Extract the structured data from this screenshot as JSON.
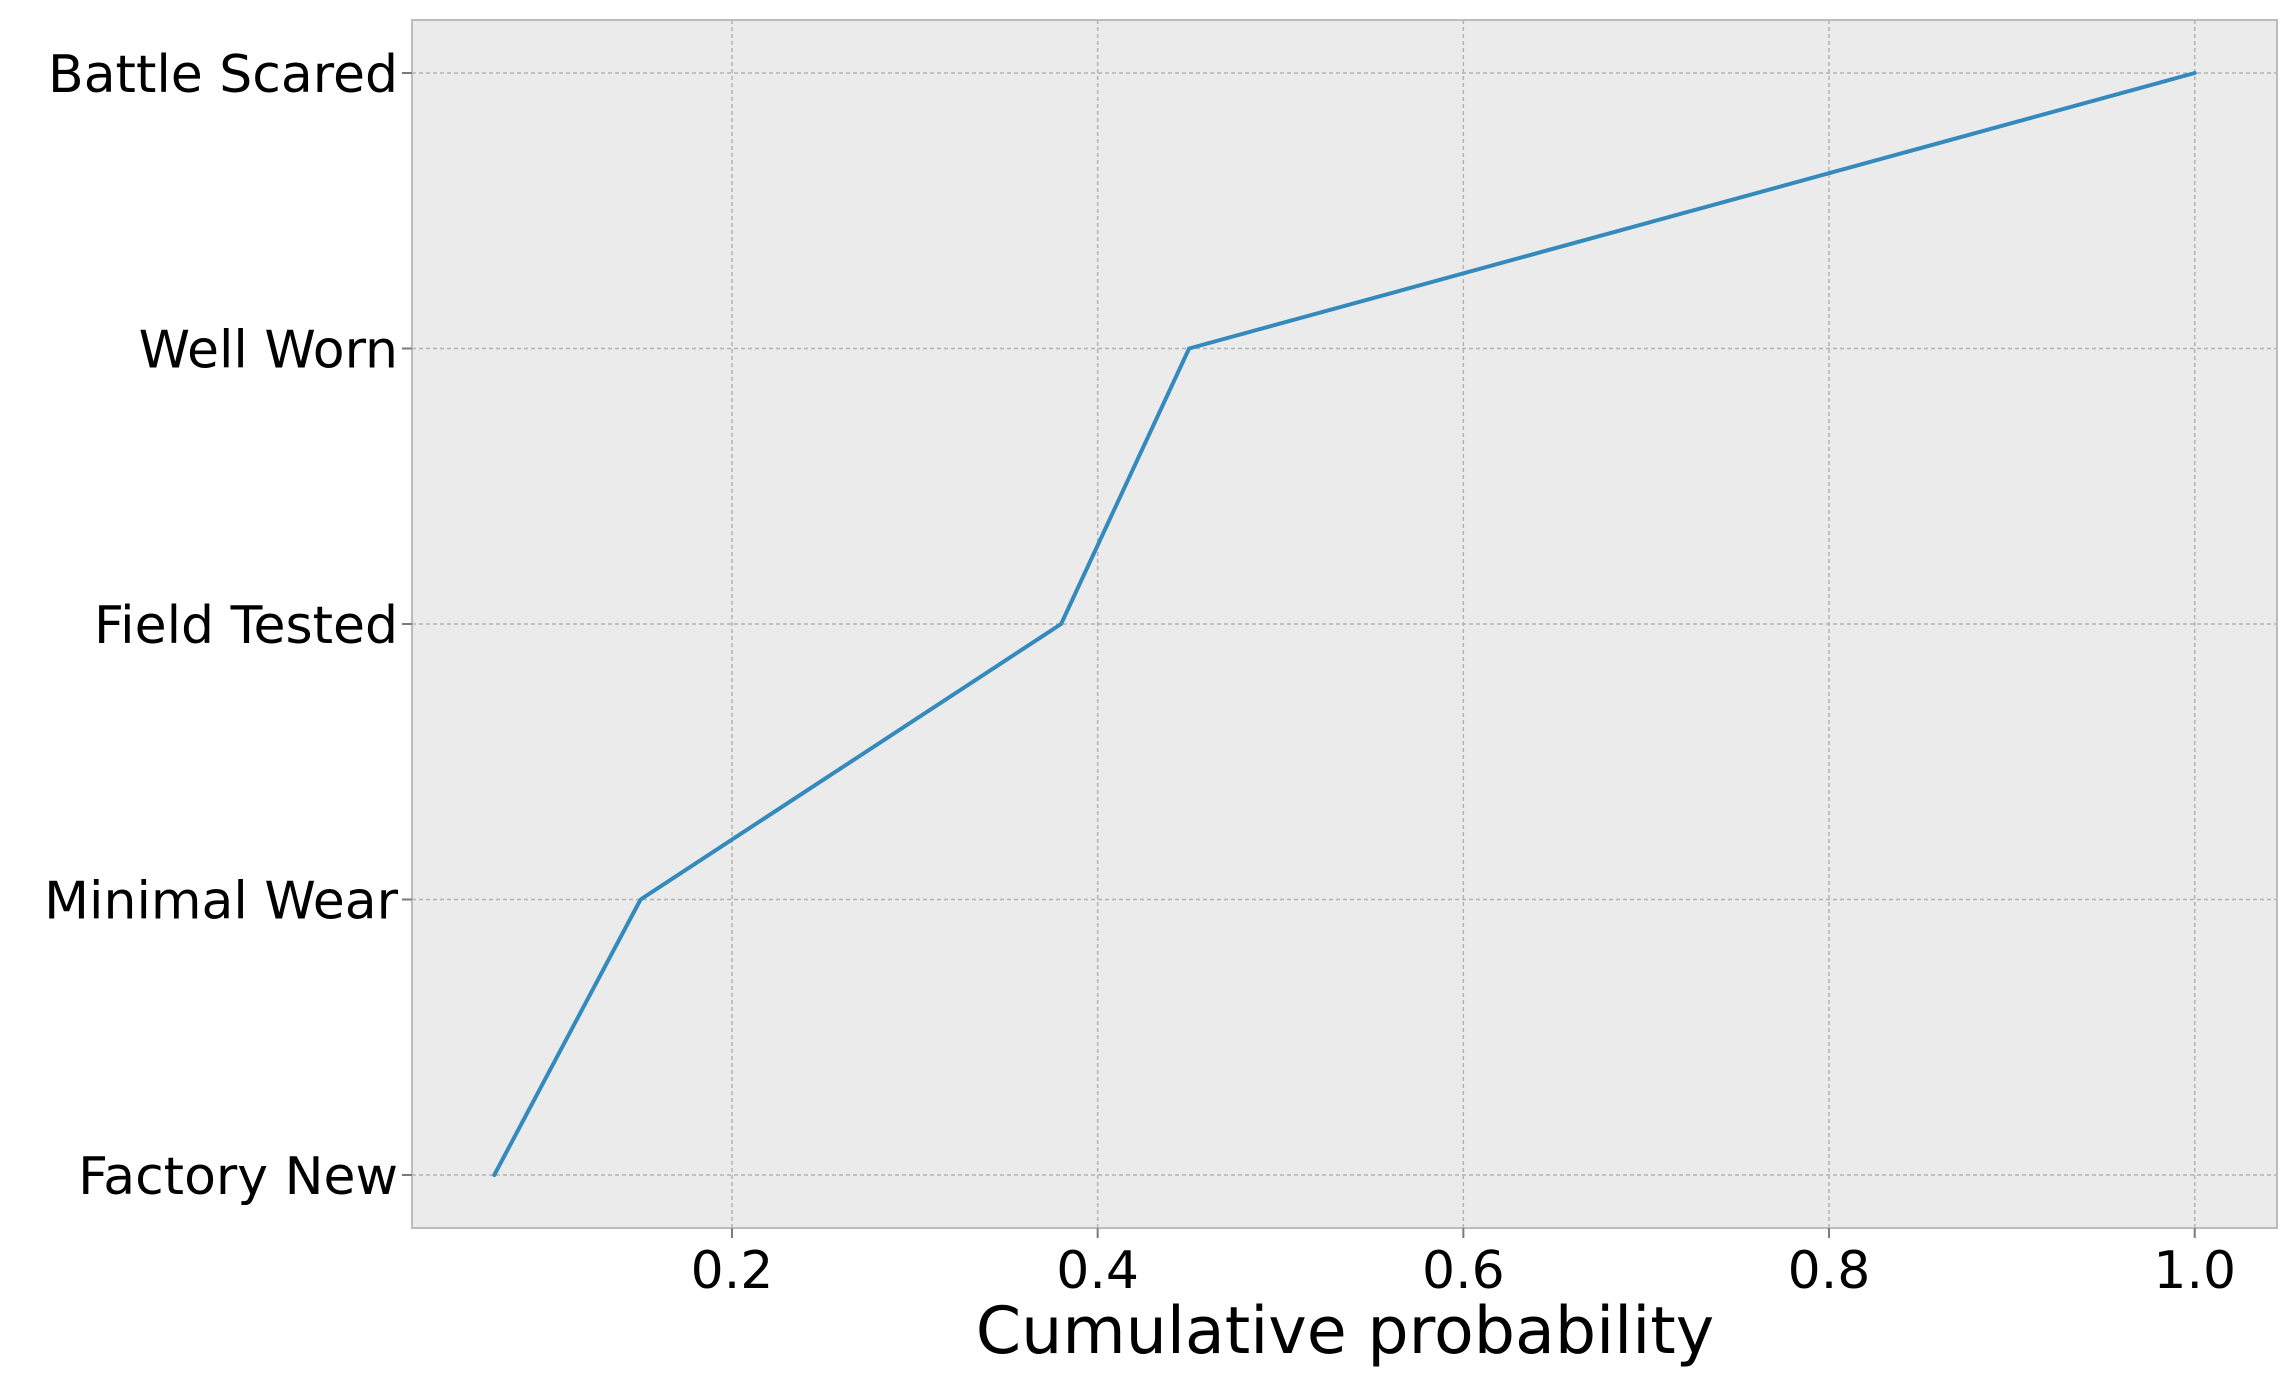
{
  "chart_data": {
    "type": "line",
    "title": "",
    "xlabel": "Cumulative probability",
    "ylabel": "",
    "categories": [
      "Factory New",
      "Minimal Wear",
      "Field Tested",
      "Well Worn",
      "Battle Scared"
    ],
    "x": [
      0.07,
      0.15,
      0.38,
      0.45,
      1.0
    ],
    "xlim": [
      0.025,
      1.045
    ],
    "xticks": [
      0.2,
      0.4,
      0.6,
      0.8,
      1.0
    ],
    "xtick_labels": [
      "0.2",
      "0.4",
      "0.6",
      "0.8",
      "1.0"
    ],
    "grid": true,
    "colors": {
      "line": "#348ABD",
      "plot_background": "#EBEBEB",
      "grid": "#B3B3B3",
      "frame": "#BCBCBC"
    }
  }
}
